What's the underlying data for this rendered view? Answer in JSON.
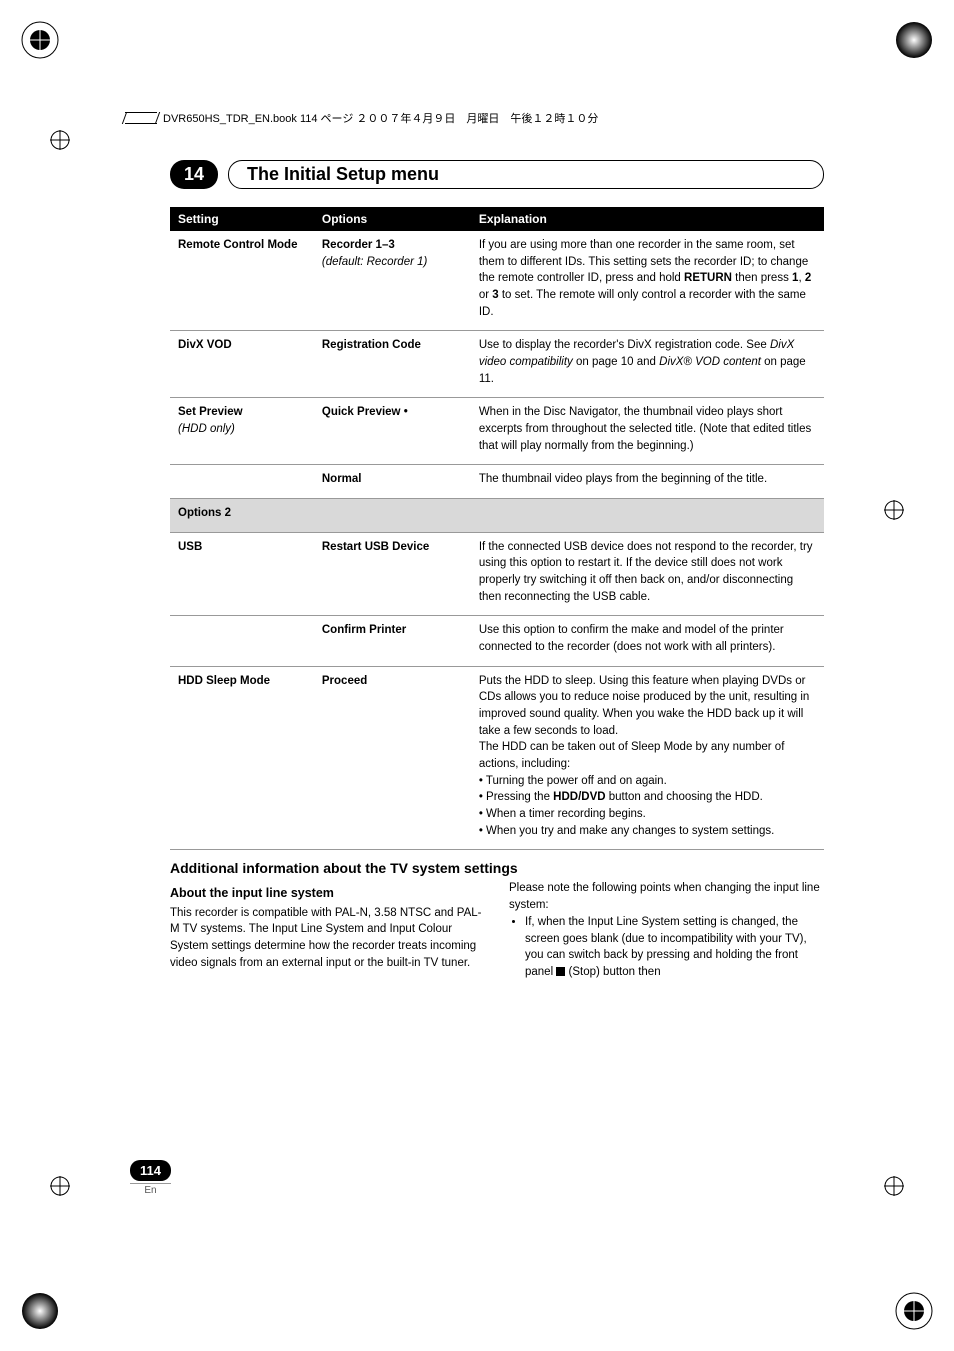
{
  "print_header": "DVR650HS_TDR_EN.book 114 ページ ２００７年４月９日　月曜日　午後１２時１０分",
  "chapter": {
    "number": "14",
    "title": "The Initial Setup menu"
  },
  "table": {
    "headers": {
      "setting": "Setting",
      "options": "Options",
      "explanation": "Explanation"
    },
    "rows": [
      {
        "setting": "Remote Control Mode",
        "options_html": "<b>Recorder 1–3</b><br><span class='italic'>(default: Recorder 1)</span>",
        "explanation_html": "If you are using more than one recorder in the same room, set them to different IDs. This setting sets the recorder ID; to change the remote controller ID, press and hold <b>RETURN</b> then press <b>1</b>, <b>2</b> or <b>3</b> to set. The remote will only control a recorder with the same ID."
      },
      {
        "setting": "DivX VOD",
        "options_html": "<b>Registration Code</b>",
        "explanation_html": "Use to display the recorder's DivX registration code. See <i>DivX video compatibility</i> on page 10 and <i>DivX® VOD content</i> on page 11."
      },
      {
        "setting": "Set Preview",
        "setting_sub": "(HDD only)",
        "options_html": "<b>Quick Preview •</b>",
        "explanation_html": "When in the Disc Navigator, the thumbnail video plays short excerpts from throughout the selected title. (Note that edited titles that will play normally from the beginning.)"
      },
      {
        "setting": "",
        "options_html": "<b>Normal</b>",
        "explanation_html": "The thumbnail video plays from the beginning of the title."
      },
      {
        "section": "Options 2"
      },
      {
        "setting": "USB",
        "options_html": "<b>Restart USB Device</b>",
        "explanation_html": "If the connected USB device does not respond to the recorder, try using this option to restart it. If the device still does not work properly try switching it off then back on, and/or disconnecting then reconnecting the USB cable."
      },
      {
        "setting": "",
        "options_html": "<b>Confirm Printer</b>",
        "explanation_html": "Use this option to confirm the make and model of the printer connected to the recorder (does not work with all printers)."
      },
      {
        "setting": "HDD Sleep Mode",
        "options_html": "<b>Proceed</b>",
        "explanation_html": "Puts the HDD to sleep. Using this feature when playing DVDs or CDs allows you to reduce noise produced by the unit, resulting in improved sound quality. When you wake the HDD back up it will take a few seconds to load.<br>The HDD can be taken out of Sleep Mode by any number of actions, including:<br>• Turning the power off and on again.<br>• Pressing the <b>HDD/DVD</b> button and choosing the HDD.<br>• When a timer recording begins.<br>• When you try and make any changes to system settings."
      }
    ]
  },
  "additional": {
    "heading": "Additional information about the TV system settings",
    "sub_left_heading": "About the input line system",
    "left_para": "This recorder is compatible with PAL-N, 3.58 NTSC and PAL-M TV systems. The Input Line System and Input Colour System settings determine how the recorder treats incoming video signals from an external input or the built-in TV tuner.",
    "right_para": "Please note the following points when changing the input line system:",
    "right_bullet": "If, when the Input Line System setting is changed, the screen goes blank (due to incompatibility with your TV), you can switch back by pressing and holding the front panel ",
    "right_bullet_tail": " (Stop) button then"
  },
  "page": {
    "number": "114",
    "lang": "En"
  }
}
